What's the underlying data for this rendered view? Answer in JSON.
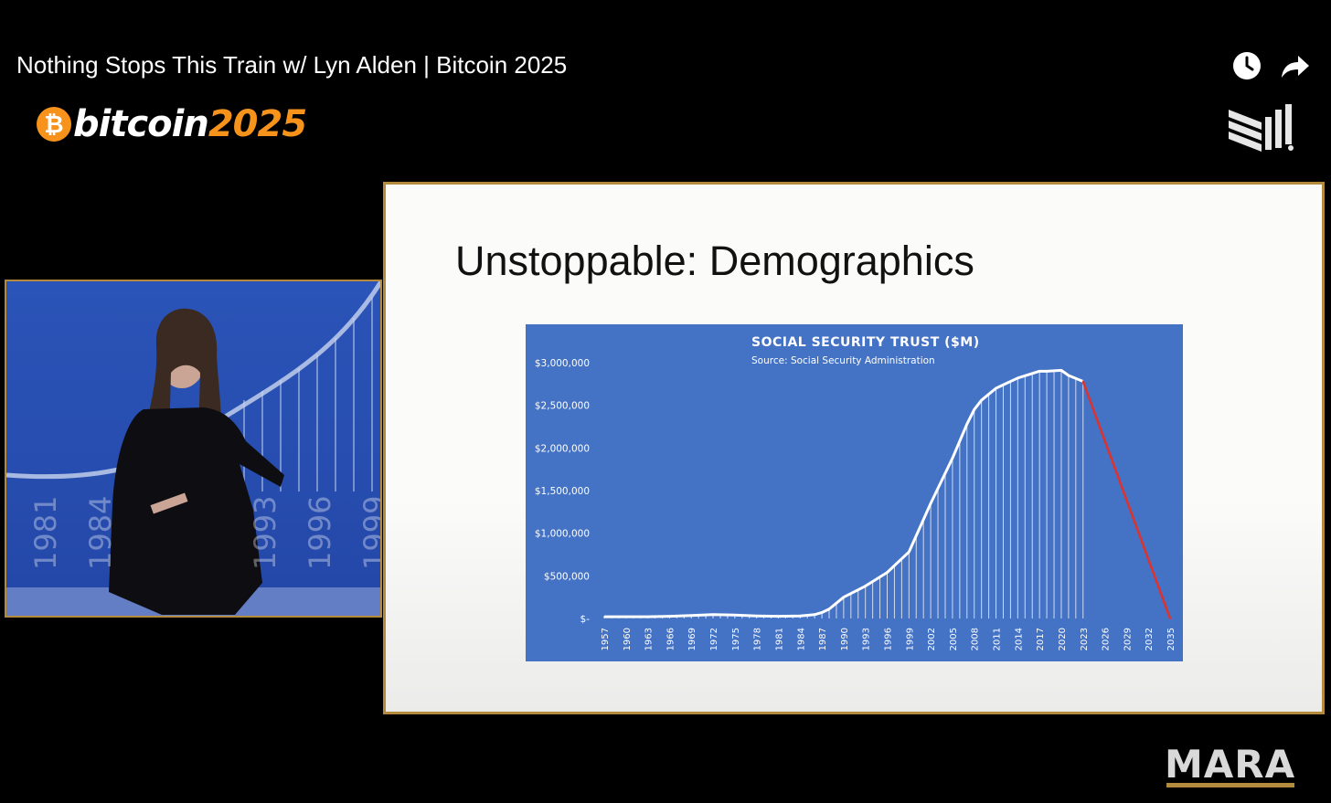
{
  "video": {
    "title": "Nothing Stops This Train w/ Lyn Alden | Bitcoin 2025",
    "icons": [
      "watch-later-icon",
      "share-icon"
    ]
  },
  "branding": {
    "coin_symbol": "₿",
    "event_word": "bitcoin",
    "event_year": "2025",
    "sponsor": "MARA",
    "accent_color": "#f7931a",
    "frame_color": "#b48a3c"
  },
  "camera": {
    "background_year_labels": [
      "1981",
      "1984",
      "1993",
      "1996",
      "1999"
    ]
  },
  "slide": {
    "title": "Unstoppable: Demographics"
  },
  "chart_data": {
    "type": "area",
    "title": "SOCIAL SECURITY TRUST ($M)",
    "subtitle": "Source: Social Security Administration",
    "xlabel": "",
    "ylabel": "",
    "ylim": [
      0,
      3000000
    ],
    "y_ticks": [
      "$-",
      "$500,000",
      "$1,000,000",
      "$1,500,000",
      "$2,000,000",
      "$2,500,000",
      "$3,000,000"
    ],
    "x_ticks": [
      "1957",
      "1960",
      "1963",
      "1966",
      "1969",
      "1972",
      "1975",
      "1978",
      "1981",
      "1984",
      "1987",
      "1990",
      "1993",
      "1996",
      "1999",
      "2002",
      "2005",
      "2008",
      "2011",
      "2014",
      "2017",
      "2020",
      "2023",
      "2026",
      "2029",
      "2032",
      "2035"
    ],
    "series": [
      {
        "color": "#ffffff",
        "x": [
          1957,
          1960,
          1963,
          1966,
          1969,
          1972,
          1975,
          1978,
          1981,
          1984,
          1986,
          1987,
          1988,
          1990,
          1993,
          1996,
          1999,
          2002,
          2005,
          2007,
          2008,
          2009,
          2011,
          2014,
          2017,
          2018,
          2020,
          2021,
          2023
        ],
        "values": [
          20000,
          20000,
          20000,
          25000,
          35000,
          45000,
          40000,
          30000,
          25000,
          30000,
          45000,
          70000,
          110000,
          250000,
          380000,
          540000,
          780000,
          1350000,
          1880000,
          2280000,
          2450000,
          2560000,
          2700000,
          2820000,
          2900000,
          2900000,
          2910000,
          2850000,
          2780000
        ]
      },
      {
        "color": "#e0312b",
        "x": [
          2023,
          2035
        ],
        "values": [
          2780000,
          0
        ]
      }
    ],
    "grid": false,
    "legend": "none"
  }
}
